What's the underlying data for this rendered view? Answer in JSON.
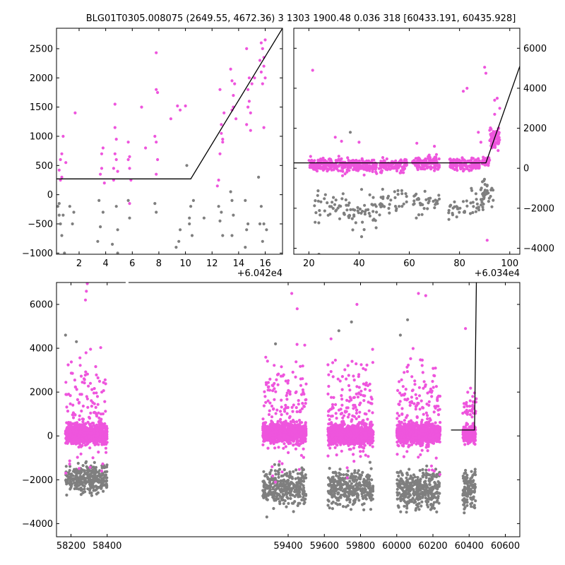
{
  "title": "BLG01T0305.008075 (2649.55, 4672.36)   3 1303 1900.48 0.036 318 [60433.191, 60435.928]",
  "colors": {
    "magenta": "#ee55dd",
    "grey": "#7f7f7f",
    "model": "#000000"
  },
  "chart_data": [
    {
      "panel": "top-left",
      "type": "scatter",
      "x_offset_label": "+6.042e4",
      "xlim": [
        0.3,
        17.3
      ],
      "ylim": [
        -1020,
        2850
      ],
      "xticks": [
        2,
        4,
        6,
        8,
        10,
        12,
        14,
        16
      ],
      "yticks": [
        -1000,
        -500,
        0,
        500,
        1000,
        1500,
        2000,
        2500
      ],
      "y_axis_side": "left",
      "model": {
        "x": [
          0.3,
          10.4,
          17.3
        ],
        "y": [
          270,
          270,
          2850
        ]
      },
      "series": [
        {
          "color_key": "magenta",
          "points": [
            [
              0.6,
              250
            ],
            [
              0.7,
              700
            ],
            [
              0.8,
              1000
            ],
            [
              0.6,
              600
            ],
            [
              0.7,
              300
            ],
            [
              0.5,
              420
            ],
            [
              1.7,
              1400
            ],
            [
              1.0,
              550
            ],
            [
              3.6,
              350
            ],
            [
              3.7,
              700
            ],
            [
              3.7,
              450
            ],
            [
              3.8,
              800
            ],
            [
              3.9,
              200
            ],
            [
              4.6,
              250
            ],
            [
              4.6,
              450
            ],
            [
              4.7,
              1550
            ],
            [
              4.7,
              1150
            ],
            [
              4.8,
              950
            ],
            [
              4.8,
              600
            ],
            [
              4.9,
              400
            ],
            [
              4.7,
              700
            ],
            [
              5.7,
              600
            ],
            [
              5.7,
              900
            ],
            [
              5.8,
              650
            ],
            [
              5.8,
              450
            ],
            [
              5.9,
              250
            ],
            [
              5.8,
              -150
            ],
            [
              6.7,
              1500
            ],
            [
              7.0,
              800
            ],
            [
              7.8,
              2430
            ],
            [
              7.8,
              1800
            ],
            [
              7.9,
              1750
            ],
            [
              7.7,
              1000
            ],
            [
              7.8,
              900
            ],
            [
              7.9,
              600
            ],
            [
              7.8,
              350
            ],
            [
              8.9,
              1300
            ],
            [
              9.4,
              1520
            ],
            [
              9.6,
              1450
            ],
            [
              10.0,
              1520
            ],
            [
              12.4,
              150
            ],
            [
              12.5,
              250
            ],
            [
              12.6,
              700
            ],
            [
              12.7,
              1050
            ],
            [
              12.8,
              950
            ],
            [
              12.9,
              1400
            ],
            [
              12.6,
              1800
            ],
            [
              12.7,
              1200
            ],
            [
              12.8,
              900
            ],
            [
              13.4,
              2150
            ],
            [
              13.5,
              1950
            ],
            [
              13.5,
              1450
            ],
            [
              13.6,
              1500
            ],
            [
              13.6,
              1700
            ],
            [
              13.7,
              1900
            ],
            [
              13.8,
              1300
            ],
            [
              14.6,
              2500
            ],
            [
              14.8,
              2000
            ],
            [
              14.7,
              1800
            ],
            [
              14.8,
              1600
            ],
            [
              14.9,
              1400
            ],
            [
              14.6,
              1200
            ],
            [
              14.7,
              1500
            ],
            [
              14.9,
              1100
            ],
            [
              15.0,
              1900
            ],
            [
              15.2,
              2000
            ],
            [
              15.7,
              2600
            ],
            [
              15.8,
              2500
            ],
            [
              15.9,
              2350
            ],
            [
              15.9,
              2200
            ],
            [
              16.0,
              2650
            ],
            [
              15.9,
              1150
            ],
            [
              15.8,
              1900
            ],
            [
              16.0,
              2000
            ],
            [
              15.7,
              2100
            ],
            [
              15.6,
              2300
            ]
          ]
        },
        {
          "color_key": "grey",
          "points": [
            [
              0.4,
              -200
            ],
            [
              0.5,
              -350
            ],
            [
              0.6,
              -500
            ],
            [
              0.7,
              -700
            ],
            [
              0.5,
              -150
            ],
            [
              0.8,
              -350
            ],
            [
              0.9,
              -1000
            ],
            [
              1.5,
              -500
            ],
            [
              1.3,
              -200
            ],
            [
              1.6,
              -300
            ],
            [
              3.4,
              -800
            ],
            [
              3.6,
              -550
            ],
            [
              3.5,
              -100
            ],
            [
              3.8,
              -300
            ],
            [
              4.5,
              -850
            ],
            [
              4.8,
              -200
            ],
            [
              4.9,
              -1000
            ],
            [
              4.9,
              -600
            ],
            [
              5.8,
              -400
            ],
            [
              5.7,
              -100
            ],
            [
              7.7,
              -150
            ],
            [
              7.8,
              -300
            ],
            [
              9.3,
              -900
            ],
            [
              9.5,
              -800
            ],
            [
              9.6,
              -600
            ],
            [
              10.1,
              500
            ],
            [
              10.3,
              -400
            ],
            [
              10.4,
              -200
            ],
            [
              10.5,
              -700
            ],
            [
              10.6,
              -100
            ],
            [
              10.3,
              -500
            ],
            [
              11.4,
              -400
            ],
            [
              12.5,
              -200
            ],
            [
              12.6,
              -450
            ],
            [
              12.7,
              -300
            ],
            [
              12.8,
              -700
            ],
            [
              13.4,
              50
            ],
            [
              13.5,
              -700
            ],
            [
              13.6,
              -350
            ],
            [
              13.5,
              -100
            ],
            [
              14.5,
              -100
            ],
            [
              14.6,
              -600
            ],
            [
              14.7,
              -500
            ],
            [
              14.5,
              -900
            ],
            [
              15.6,
              -500
            ],
            [
              15.7,
              -200
            ],
            [
              15.8,
              -800
            ],
            [
              15.5,
              300
            ],
            [
              15.9,
              -500
            ],
            [
              16.1,
              -600
            ]
          ]
        }
      ]
    },
    {
      "panel": "top-right",
      "type": "scatter",
      "x_offset_label": "+6.034e4",
      "xlim": [
        14,
        104
      ],
      "ylim": [
        -4300,
        7000
      ],
      "xticks": [
        20,
        40,
        60,
        80,
        100
      ],
      "yticks": [
        -4000,
        -2000,
        0,
        2000,
        4000,
        6000
      ],
      "y_axis_side": "right",
      "model": {
        "x": [
          14,
          90.5,
          104
        ],
        "y": [
          270,
          270,
          5100
        ]
      },
      "series": [
        {
          "color_key": "magenta",
          "clusters": [
            {
              "x": [
                20,
                36
              ],
              "ymin": -600,
              "ymax": 1000,
              "n": 170
            },
            {
              "x": [
                36,
                47
              ],
              "ymin": -600,
              "ymax": 900,
              "n": 140
            },
            {
              "x": [
                48,
                59
              ],
              "ymin": -600,
              "ymax": 900,
              "n": 140
            },
            {
              "x": [
                61,
                72
              ],
              "ymin": -500,
              "ymax": 1000,
              "n": 150
            },
            {
              "x": [
                76,
                88
              ],
              "ymin": -500,
              "ymax": 900,
              "n": 130
            },
            {
              "x": [
                89,
                92
              ],
              "ymin": -200,
              "ymax": 900,
              "n": 40
            },
            {
              "x": [
                92,
                96
              ],
              "ymin": 200,
              "ymax": 2800,
              "n": 70
            }
          ],
          "points": [
            [
              21.5,
              4900
            ],
            [
              30.5,
              1550
            ],
            [
              33,
              1350
            ],
            [
              40,
              1300
            ],
            [
              81.5,
              3850
            ],
            [
              83,
              4000
            ],
            [
              90,
              5050
            ],
            [
              90.5,
              4750
            ],
            [
              94,
              3400
            ],
            [
              95,
              3500
            ],
            [
              96,
              3000
            ],
            [
              70,
              1100
            ],
            [
              63,
              1250
            ],
            [
              88.5,
              1300
            ],
            [
              87.5,
              1800
            ],
            [
              94,
              2700
            ],
            [
              91,
              -3600
            ]
          ]
        },
        {
          "color_key": "grey",
          "clusters": [
            {
              "x": [
                22,
                36
              ],
              "ymin": -3500,
              "ymax": -200,
              "n": 40
            },
            {
              "x": [
                36,
                47
              ],
              "ymin": -4300,
              "ymax": -200,
              "n": 40
            },
            {
              "x": [
                48,
                59
              ],
              "ymin": -3300,
              "ymax": -200,
              "n": 35
            },
            {
              "x": [
                61,
                72
              ],
              "ymin": -3100,
              "ymax": -200,
              "n": 35
            },
            {
              "x": [
                75,
                90
              ],
              "ymin": -3500,
              "ymax": -200,
              "n": 45
            },
            {
              "x": [
                88,
                94
              ],
              "ymin": -3000,
              "ymax": 500,
              "n": 30
            }
          ],
          "points": [
            [
              24,
              -4300
            ],
            [
              36.5,
              1800
            ],
            [
              22.5,
              -2700
            ]
          ]
        }
      ]
    },
    {
      "panel": "bottom",
      "type": "scatter",
      "xlim": [
        58120,
        60680
      ],
      "ylim": [
        -4600,
        7000
      ],
      "xticks": [
        58200,
        58400,
        59400,
        59600,
        59800,
        60000,
        60200,
        60400,
        60600
      ],
      "yticks": [
        -4000,
        -2000,
        0,
        2000,
        4000,
        6000
      ],
      "y_axis_side": "left",
      "model": {
        "x": [
          60300,
          60430,
          60432,
          60440
        ],
        "y": [
          270,
          270,
          1500,
          7000
        ]
      },
      "series": [
        {
          "color_key": "magenta",
          "clusters": [
            {
              "x": [
                58170,
                58400
              ],
              "ymin": -900,
              "ymax": 1100,
              "n": 900
            },
            {
              "x": [
                58170,
                58400
              ],
              "ymin": -4500,
              "ymax": 7000,
              "n": 140
            },
            {
              "x": [
                59260,
                59500
              ],
              "ymin": -800,
              "ymax": 1100,
              "n": 900
            },
            {
              "x": [
                59260,
                59500
              ],
              "ymin": -4500,
              "ymax": 7000,
              "n": 160
            },
            {
              "x": [
                59620,
                59870
              ],
              "ymin": -1000,
              "ymax": 1100,
              "n": 900
            },
            {
              "x": [
                59620,
                59870
              ],
              "ymin": -4500,
              "ymax": 7000,
              "n": 170
            },
            {
              "x": [
                60000,
                60240
              ],
              "ymin": -900,
              "ymax": 1100,
              "n": 900
            },
            {
              "x": [
                60000,
                60240
              ],
              "ymin": -4500,
              "ymax": 7000,
              "n": 160
            },
            {
              "x": [
                60365,
                60435
              ],
              "ymin": -700,
              "ymax": 900,
              "n": 260
            },
            {
              "x": [
                60365,
                60440
              ],
              "ymin": -500,
              "ymax": 3000,
              "n": 40
            }
          ],
          "points": [
            [
              58290,
              6950
            ],
            [
              58285,
              6600
            ],
            [
              58280,
              6200
            ],
            [
              59420,
              6500
            ],
            [
              59450,
              5800
            ],
            [
              59780,
              6000
            ],
            [
              60120,
              6500
            ],
            [
              60160,
              6400
            ],
            [
              60380,
              4900
            ]
          ]
        },
        {
          "color_key": "grey",
          "clusters": [
            {
              "x": [
                58170,
                58400
              ],
              "ymin": -3500,
              "ymax": -500,
              "n": 300
            },
            {
              "x": [
                59260,
                59500
              ],
              "ymin": -4300,
              "ymax": -500,
              "n": 320
            },
            {
              "x": [
                59620,
                59870
              ],
              "ymin": -4300,
              "ymax": -500,
              "n": 340
            },
            {
              "x": [
                60000,
                60240
              ],
              "ymin": -4300,
              "ymax": -500,
              "n": 340
            },
            {
              "x": [
                60365,
                60435
              ],
              "ymin": -4500,
              "ymax": -500,
              "n": 120
            }
          ],
          "points": [
            [
              58170,
              4600
            ],
            [
              58230,
              4300
            ],
            [
              59330,
              4200
            ],
            [
              59680,
              4800
            ],
            [
              59750,
              5200
            ],
            [
              60020,
              4600
            ],
            [
              60060,
              5300
            ]
          ]
        }
      ]
    }
  ]
}
